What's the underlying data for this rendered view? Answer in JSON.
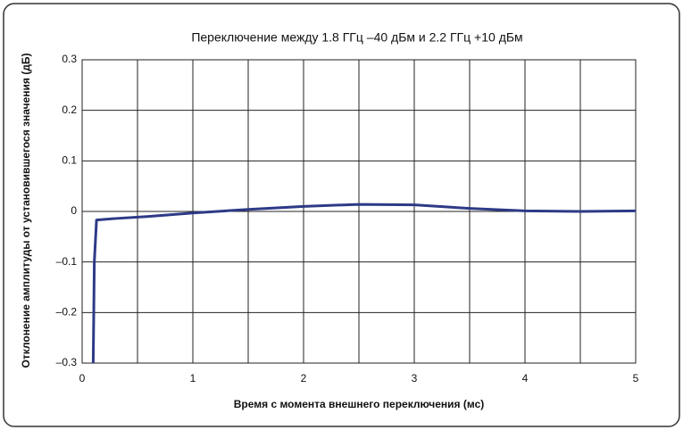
{
  "chart_data": {
    "type": "line",
    "title": "Переключение между 1.8 ГГц –40 дБм и 2.2 ГГц +10 дБм",
    "x_label": "Время с момента внешнего переключения (мс)",
    "y_label": "Отклонение амплитуды от установившегося значения (дБ)",
    "x": [
      0.1,
      0.11,
      0.13,
      0.3,
      0.6,
      1,
      1.5,
      2,
      2.5,
      3,
      3.5,
      4,
      4.5,
      5
    ],
    "series": [
      {
        "name": "Отклонение",
        "color": "#2e3a87",
        "values": [
          -0.3,
          -0.1,
          -0.017,
          -0.014,
          -0.01,
          -0.003,
          0.004,
          0.01,
          0.014,
          0.013,
          0.006,
          0.001,
          0,
          0.001
        ]
      }
    ],
    "xlim": [
      0,
      5
    ],
    "xticks": [
      0,
      1,
      2,
      3,
      4,
      5
    ],
    "xminorticks": [
      0.5,
      1.5,
      2.5,
      3.5,
      4.5
    ],
    "ylim": [
      -0.3,
      0.3
    ],
    "yticks": [
      {
        "value": -0.3,
        "label": "–0.3"
      },
      {
        "value": -0.2,
        "label": "–0.2"
      },
      {
        "value": -0.1,
        "label": "–0.1"
      },
      0,
      0.1,
      0.2,
      0.3
    ],
    "grid": true
  }
}
